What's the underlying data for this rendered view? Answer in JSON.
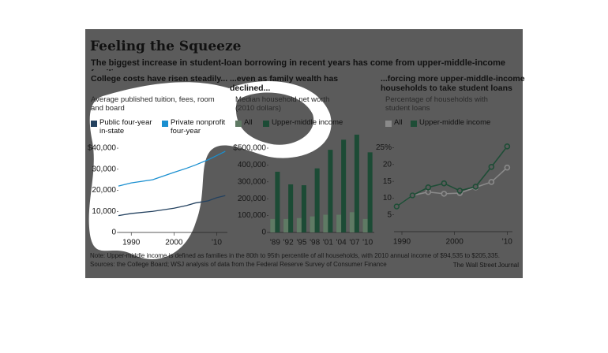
{
  "title": "Feeling the Squeeze",
  "subtitle": "The biggest increase in student-loan borrowing in recent years has come from upper-middle-income families.",
  "note": "Note: Upper-middle income is defined as families in the 80th to 95th percentile of all households, with 2010 annual income of $94,535 to $205,335.",
  "sources": "Sources: the College Board; WSJ analysis of data from the Federal Reserve Survey of Consumer Finance",
  "credit": "The Wall Street Journal",
  "chart_data": [
    {
      "type": "line",
      "title": "College costs have risen steadily...",
      "subtitle": "Average published tuition, fees, room and board",
      "x": [
        1987,
        1990,
        1995,
        2000,
        2003,
        2005,
        2008,
        2010,
        2012
      ],
      "series": [
        {
          "name": "Public four-year in-state",
          "color": "#23415f",
          "values": [
            8000,
            9000,
            10000,
            11500,
            12800,
            14000,
            15000,
            16500,
            17500
          ]
        },
        {
          "name": "Private nonprofit four-year",
          "color": "#1a8fd0",
          "values": [
            22000,
            23500,
            25000,
            28500,
            30500,
            32000,
            34500,
            36500,
            38500
          ]
        }
      ],
      "xlim": [
        1987,
        2012.5
      ],
      "xticks": [
        1990,
        2000,
        {
          "value": 2010,
          "label": "'10"
        }
      ],
      "ylim": [
        0,
        42000
      ],
      "yticks": [
        0,
        {
          "value": 10000,
          "label": "10,000"
        },
        {
          "value": 20000,
          "label": "20,000"
        },
        {
          "value": 30000,
          "label": "30,000"
        },
        {
          "value": 40000,
          "label": "$40,000"
        }
      ]
    },
    {
      "type": "bar",
      "title": "...even as family wealth has declined...",
      "subtitle": "Median household net worth (2010 dollars)",
      "categories": [
        "'89",
        "'92",
        "'95",
        "'98",
        "'01",
        "'04",
        "'07",
        "'10"
      ],
      "series": [
        {
          "name": "All",
          "color": "#5f7a64",
          "values": [
            80000,
            80000,
            85000,
            95000,
            105000,
            105000,
            120000,
            80000
          ]
        },
        {
          "name": "Upper-middle income",
          "color": "#1c4b35",
          "values": [
            360000,
            285000,
            280000,
            380000,
            490000,
            550000,
            580000,
            475000
          ]
        }
      ],
      "ylim": [
        0,
        600000
      ],
      "yticks": [
        0,
        {
          "value": 100000,
          "label": "100,000"
        },
        {
          "value": 200000,
          "label": "200,000"
        },
        {
          "value": 300000,
          "label": "300,000"
        },
        {
          "value": 400000,
          "label": "400,000"
        },
        {
          "value": 500000,
          "label": "$500,000"
        }
      ]
    },
    {
      "type": "line",
      "title": "...forcing more upper-middle-income households to take student loans",
      "subtitle": "Percentage of households with student loans",
      "markers": true,
      "x": [
        1989,
        1992,
        1995,
        1998,
        2001,
        2004,
        2007,
        2010
      ],
      "series": [
        {
          "name": "All",
          "color": "#8a8a8a",
          "values": [
            7.5,
            10.8,
            11.8,
            11.3,
            11.5,
            13.2,
            14.8,
            19.1
          ]
        },
        {
          "name": "Upper-middle income",
          "color": "#1e4d36",
          "values": [
            7.5,
            10.8,
            13.2,
            14.4,
            12.2,
            13.4,
            19.3,
            25.4
          ]
        }
      ],
      "xlim": [
        1988.5,
        2011
      ],
      "xticks": [
        1990,
        2000,
        {
          "value": 2010,
          "label": "'10"
        }
      ],
      "ylim": [
        0,
        27
      ],
      "yticks": [
        5,
        10,
        15,
        20,
        {
          "value": 25,
          "label": "25%"
        }
      ]
    }
  ]
}
